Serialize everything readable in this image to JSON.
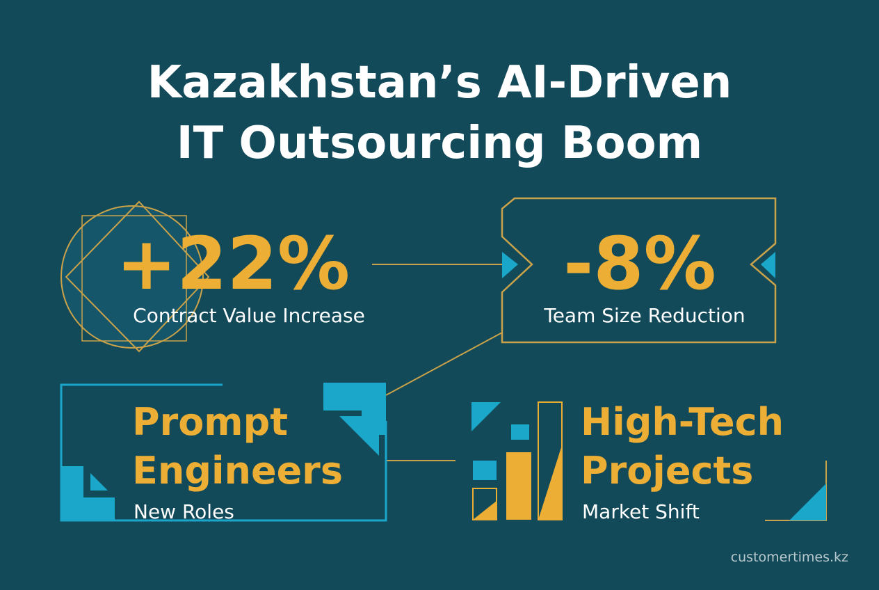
{
  "title": {
    "lines": [
      "Kazakhstan’s AI-Driven",
      "IT Outsourcing Boom"
    ]
  },
  "stats": [
    {
      "value": "+22%",
      "label": "Contract Value Increase"
    },
    {
      "value": "-8%",
      "label": "Team Size Reduction"
    }
  ],
  "highlights": [
    {
      "heading": [
        "Prompt",
        "Engineers"
      ],
      "caption": "New Roles"
    },
    {
      "heading": [
        "High-Tech",
        "Projects"
      ],
      "caption": "Market Shift"
    }
  ],
  "footer": {
    "source": "customertimes.kz"
  }
}
